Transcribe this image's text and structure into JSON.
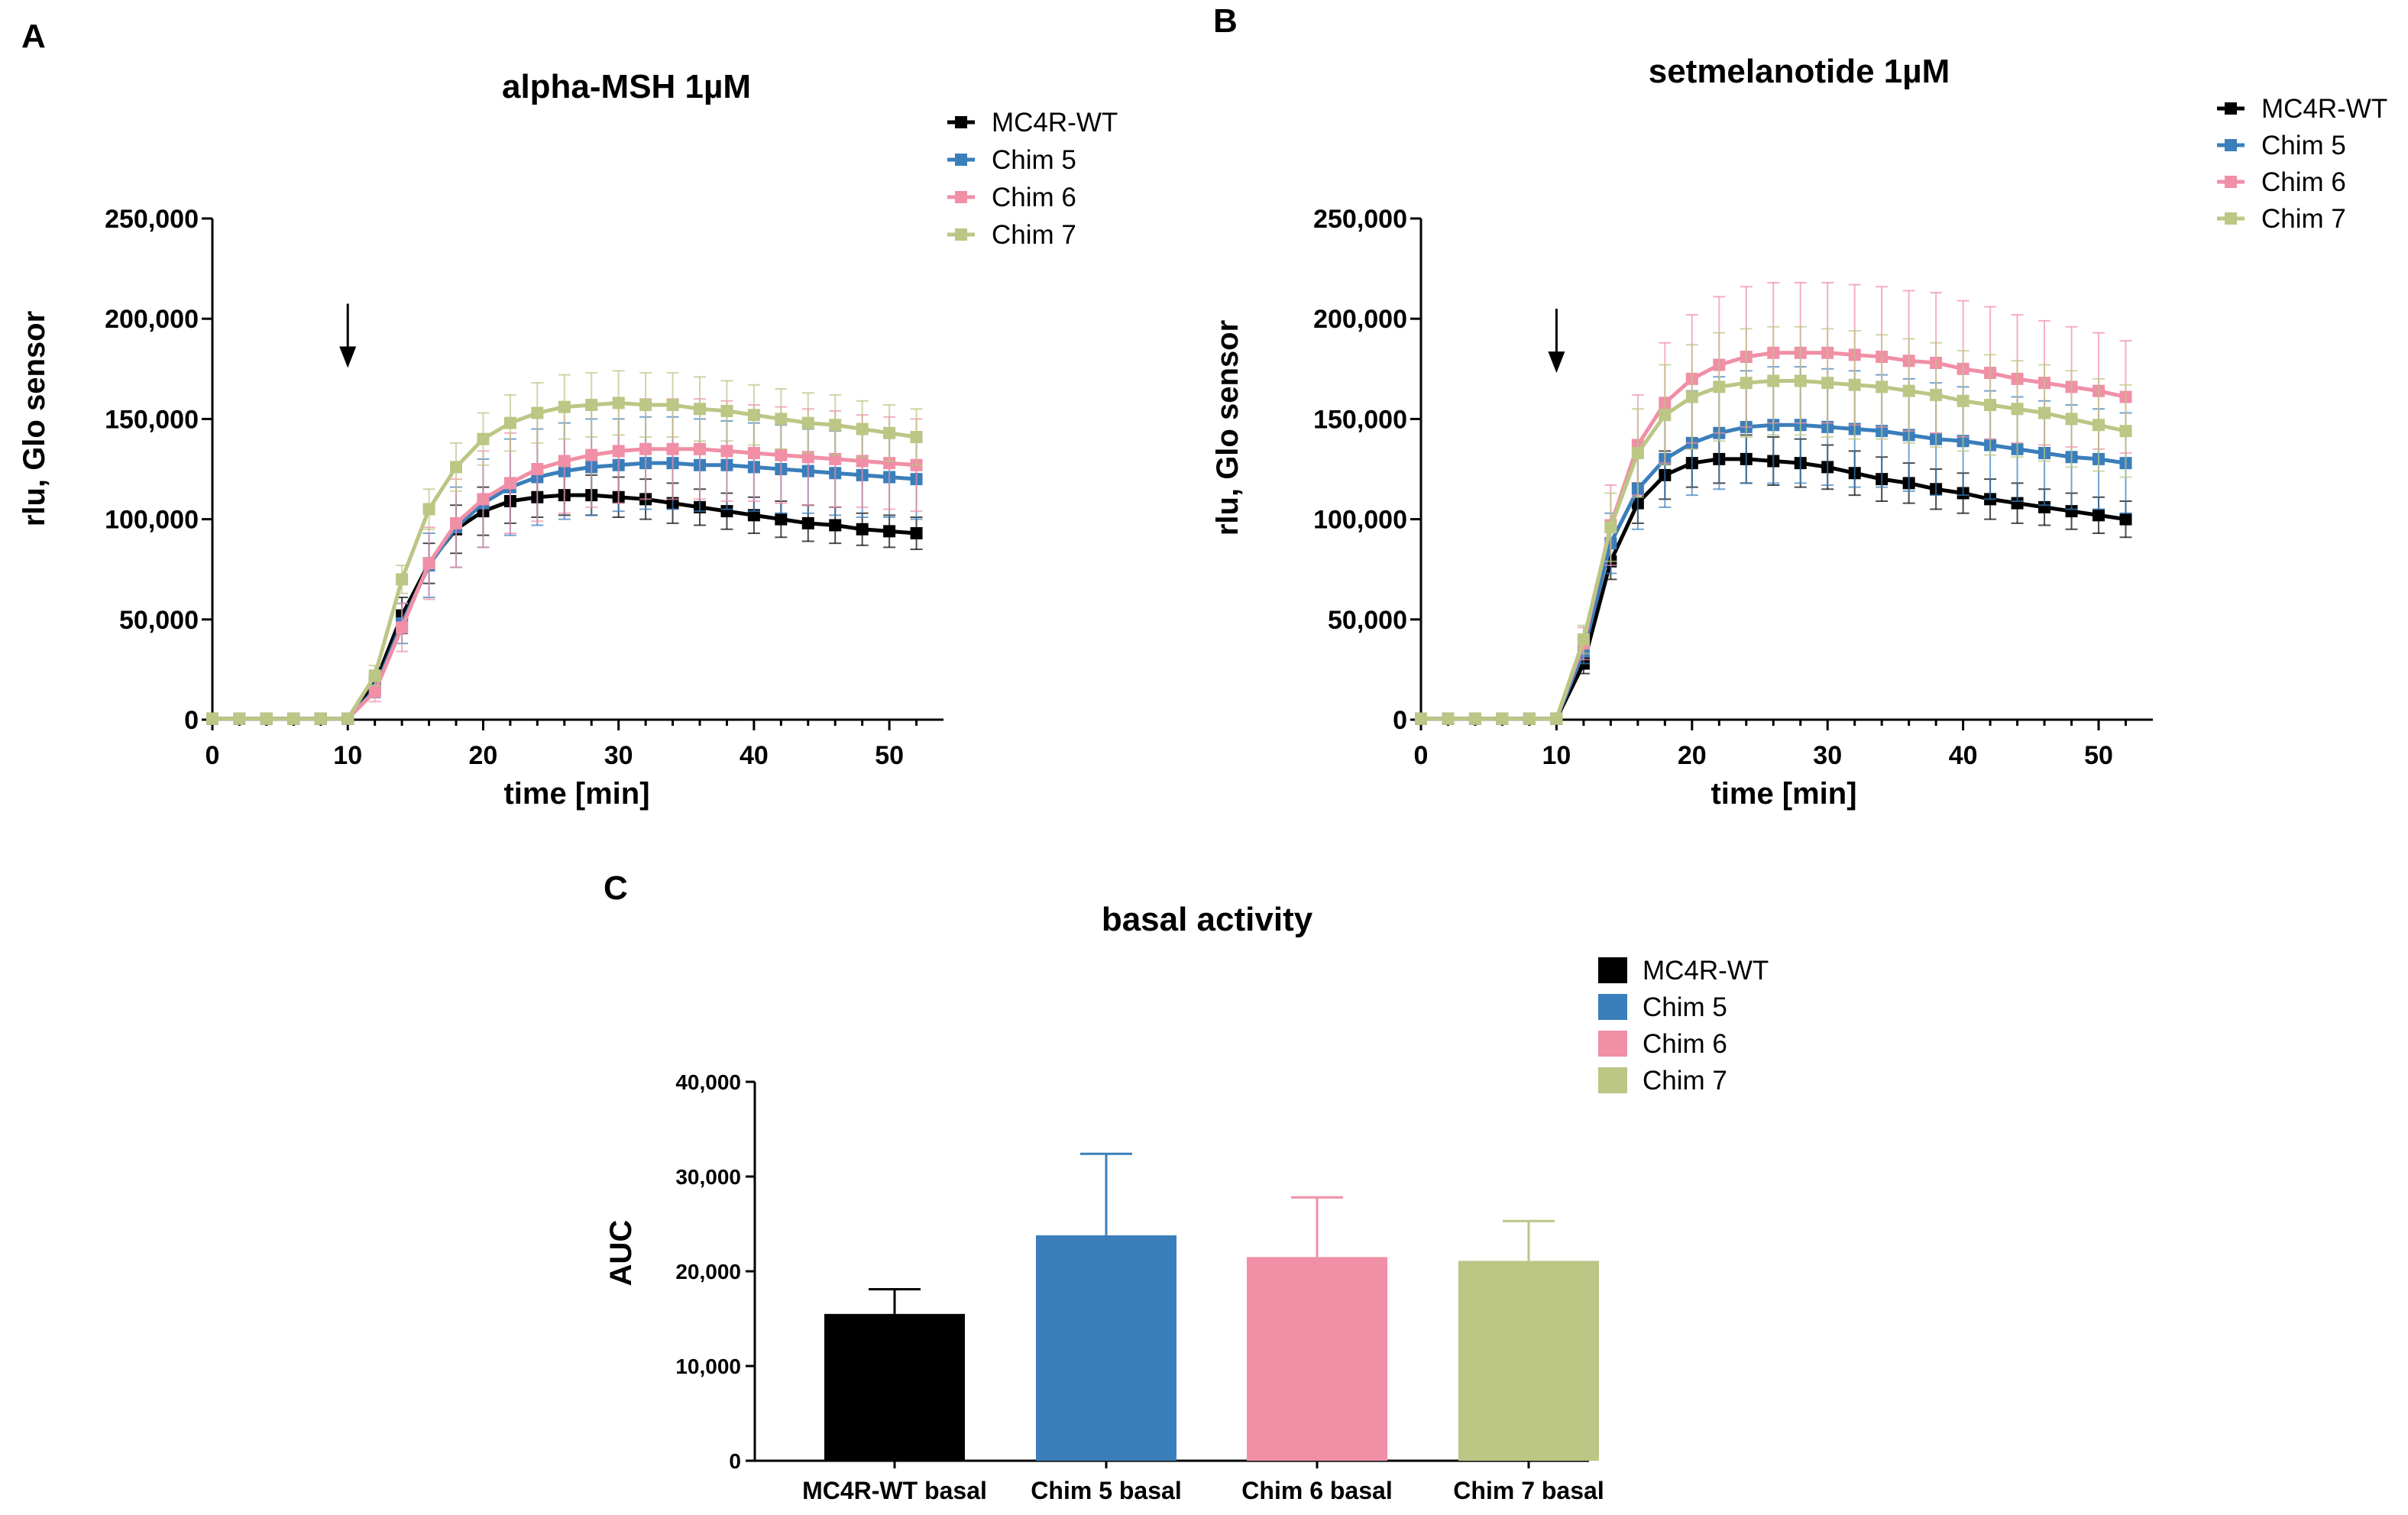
{
  "chart_data": [
    {
      "type": "line",
      "panel": "A",
      "title": "alpha-MSH 1µM",
      "xlabel": "time [min]",
      "ylabel": "rlu, Glo sensor",
      "xlim": [
        0,
        54
      ],
      "ylim": [
        0,
        250000
      ],
      "xticks": [
        0,
        10,
        20,
        30,
        40,
        50
      ],
      "yticks": [
        0,
        50000,
        100000,
        150000,
        200000,
        250000
      ],
      "ytick_labels": [
        "0",
        "50,000",
        "100,000",
        "150,000",
        "200,000",
        "250,000"
      ],
      "arrow_at_x": 10,
      "legend_position": "top-right",
      "x": [
        0,
        2,
        4,
        6,
        8,
        10,
        12,
        14,
        16,
        18,
        20,
        22,
        24,
        26,
        28,
        30,
        32,
        34,
        36,
        38,
        40,
        42,
        44,
        46,
        48,
        50,
        52
      ],
      "series": [
        {
          "name": "MC4R-WT",
          "color": "#000000",
          "values": [
            500,
            500,
            500,
            500,
            500,
            500,
            18000,
            52000,
            78000,
            95000,
            104000,
            109000,
            111000,
            112000,
            112000,
            111000,
            110000,
            108000,
            106000,
            104000,
            102000,
            100000,
            98000,
            97000,
            95000,
            94000,
            93000
          ],
          "errors": [
            800,
            800,
            800,
            800,
            800,
            800,
            4000,
            9000,
            10000,
            12000,
            12000,
            11000,
            10000,
            10000,
            10000,
            10000,
            10000,
            10000,
            9000,
            9000,
            9000,
            9000,
            9000,
            9000,
            8000,
            8000,
            8000
          ]
        },
        {
          "name": "Chim 5",
          "color": "#3a7ebb",
          "values": [
            500,
            500,
            500,
            500,
            500,
            500,
            15000,
            48000,
            77000,
            96000,
            108000,
            116000,
            121000,
            124000,
            126000,
            127000,
            128000,
            128000,
            127000,
            127000,
            126000,
            125000,
            124000,
            123000,
            122000,
            121000,
            120000
          ],
          "errors": [
            800,
            800,
            800,
            800,
            800,
            800,
            4000,
            10000,
            16000,
            20000,
            22000,
            24000,
            24000,
            24000,
            24000,
            23000,
            23000,
            23000,
            23000,
            22000,
            22000,
            22000,
            21000,
            21000,
            21000,
            20000,
            20000
          ]
        },
        {
          "name": "Chim 6",
          "color": "#f08fa6",
          "values": [
            500,
            500,
            500,
            500,
            500,
            500,
            14000,
            46000,
            78000,
            98000,
            110000,
            118000,
            125000,
            129000,
            132000,
            134000,
            135000,
            135000,
            135000,
            134000,
            133000,
            132000,
            131000,
            130000,
            129000,
            128000,
            127000
          ],
          "errors": [
            800,
            800,
            800,
            800,
            800,
            800,
            5000,
            12000,
            18000,
            22000,
            24000,
            25000,
            26000,
            26000,
            26000,
            26000,
            25000,
            25000,
            25000,
            25000,
            24000,
            24000,
            24000,
            24000,
            23000,
            23000,
            23000
          ]
        },
        {
          "name": "Chim 7",
          "color": "#bcc685",
          "values": [
            500,
            500,
            500,
            500,
            500,
            500,
            22000,
            70000,
            105000,
            126000,
            140000,
            148000,
            153000,
            156000,
            157000,
            158000,
            157000,
            157000,
            155000,
            154000,
            152000,
            150000,
            148000,
            147000,
            145000,
            143000,
            141000
          ],
          "errors": [
            800,
            800,
            800,
            800,
            800,
            800,
            5000,
            7000,
            10000,
            12000,
            13000,
            14000,
            15000,
            16000,
            16000,
            16000,
            16000,
            16000,
            16000,
            15000,
            15000,
            15000,
            15000,
            15000,
            14000,
            14000,
            14000
          ]
        }
      ]
    },
    {
      "type": "line",
      "panel": "B",
      "title": "setmelanotide 1µM",
      "xlabel": "time [min]",
      "ylabel": "rlu, Glo sensor",
      "xlim": [
        0,
        54
      ],
      "ylim": [
        0,
        250000
      ],
      "xticks": [
        0,
        10,
        20,
        30,
        40,
        50
      ],
      "yticks": [
        0,
        50000,
        100000,
        150000,
        200000,
        250000
      ],
      "ytick_labels": [
        "0",
        "50,000",
        "100,000",
        "150,000",
        "200,000",
        "250,000"
      ],
      "arrow_at_x": 10,
      "legend_position": "top-right",
      "x": [
        0,
        2,
        4,
        6,
        8,
        10,
        12,
        14,
        16,
        18,
        20,
        22,
        24,
        26,
        28,
        30,
        32,
        34,
        36,
        38,
        40,
        42,
        44,
        46,
        48,
        50,
        52
      ],
      "series": [
        {
          "name": "MC4R-WT",
          "color": "#000000",
          "values": [
            500,
            500,
            500,
            500,
            500,
            500,
            28000,
            79000,
            108000,
            122000,
            128000,
            130000,
            130000,
            129000,
            128000,
            126000,
            123000,
            120000,
            118000,
            115000,
            113000,
            110000,
            108000,
            106000,
            104000,
            102000,
            100000
          ],
          "errors": [
            800,
            800,
            800,
            800,
            800,
            800,
            5000,
            9000,
            10000,
            12000,
            12000,
            12000,
            12000,
            12000,
            12000,
            11000,
            11000,
            11000,
            10000,
            10000,
            10000,
            10000,
            10000,
            9000,
            9000,
            9000,
            9000
          ]
        },
        {
          "name": "Chim 5",
          "color": "#3a7ebb",
          "values": [
            500,
            500,
            500,
            500,
            500,
            500,
            34000,
            88000,
            115000,
            130000,
            138000,
            143000,
            146000,
            147000,
            147000,
            146000,
            145000,
            144000,
            142000,
            140000,
            139000,
            137000,
            135000,
            133000,
            131000,
            130000,
            128000
          ],
          "errors": [
            800,
            800,
            800,
            800,
            800,
            800,
            6000,
            15000,
            20000,
            24000,
            26000,
            28000,
            28000,
            29000,
            29000,
            29000,
            29000,
            28000,
            28000,
            28000,
            27000,
            27000,
            26000,
            26000,
            26000,
            25000,
            25000
          ]
        },
        {
          "name": "Chim 6",
          "color": "#f08fa6",
          "values": [
            500,
            500,
            500,
            500,
            500,
            500,
            38000,
            97000,
            137000,
            158000,
            170000,
            177000,
            181000,
            183000,
            183000,
            183000,
            182000,
            181000,
            179000,
            178000,
            175000,
            173000,
            170000,
            168000,
            166000,
            164000,
            161000
          ],
          "errors": [
            800,
            800,
            800,
            800,
            800,
            800,
            8000,
            20000,
            25000,
            30000,
            32000,
            34000,
            35000,
            35000,
            35000,
            35000,
            35000,
            35000,
            35000,
            35000,
            34000,
            33000,
            32000,
            31000,
            30000,
            29000,
            28000
          ]
        },
        {
          "name": "Chim 7",
          "color": "#bcc685",
          "values": [
            500,
            500,
            500,
            500,
            500,
            500,
            40000,
            96000,
            133000,
            152000,
            161000,
            166000,
            168000,
            169000,
            169000,
            168000,
            167000,
            166000,
            164000,
            162000,
            159000,
            157000,
            155000,
            153000,
            150000,
            147000,
            144000
          ],
          "errors": [
            800,
            800,
            800,
            800,
            800,
            800,
            7000,
            17000,
            22000,
            25000,
            26000,
            27000,
            27000,
            27000,
            27000,
            27000,
            27000,
            26000,
            26000,
            26000,
            25000,
            25000,
            24000,
            24000,
            24000,
            23000,
            23000
          ]
        }
      ]
    },
    {
      "type": "bar",
      "panel": "C",
      "title": "basal activity",
      "xlabel": "",
      "ylabel": "AUC",
      "ylim": [
        0,
        40000
      ],
      "yticks": [
        0,
        10000,
        20000,
        30000,
        40000
      ],
      "ytick_labels": [
        "0",
        "10,000",
        "20,000",
        "30,000",
        "40,000"
      ],
      "categories": [
        "MC4R-WT basal",
        "Chim 5 basal",
        "Chim 6 basal",
        "Chim 7 basal"
      ],
      "values": [
        15500,
        23800,
        21500,
        21100
      ],
      "errors": [
        2600,
        8600,
        6300,
        4200
      ],
      "colors": [
        "#000000",
        "#3a7ebb",
        "#f08fa6",
        "#bcc685"
      ],
      "legend": [
        "MC4R-WT",
        "Chim 5",
        "Chim 6",
        "Chim 7"
      ],
      "legend_position": "top-right"
    }
  ]
}
